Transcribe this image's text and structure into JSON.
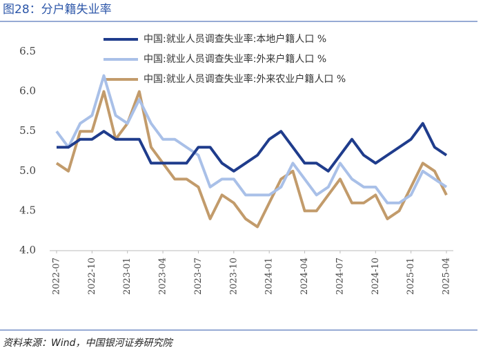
{
  "header": {
    "title": "图28：分户籍失业率"
  },
  "chart_data": {
    "type": "line",
    "categories": [
      "2022-07",
      null,
      null,
      "2022-10",
      null,
      null,
      "2023-01",
      null,
      null,
      "2023-04",
      null,
      null,
      "2023-07",
      null,
      null,
      "2023-10",
      null,
      null,
      "2024-01",
      null,
      null,
      "2024-04",
      null,
      null,
      "2024-07",
      null,
      null,
      "2024-10",
      null,
      null,
      "2025-01",
      null,
      null,
      "2025-04"
    ],
    "series": [
      {
        "name": "中国:就业人员调查失业率:本地户籍人口 %",
        "color": "#1f3c8c",
        "values": [
          5.3,
          5.3,
          5.4,
          5.4,
          5.5,
          5.4,
          5.4,
          5.4,
          5.1,
          5.1,
          5.1,
          5.1,
          5.3,
          5.3,
          5.1,
          5.0,
          5.1,
          5.2,
          5.4,
          5.5,
          5.3,
          5.1,
          5.1,
          5.0,
          5.2,
          5.4,
          5.2,
          5.1,
          5.2,
          5.3,
          5.4,
          5.6,
          5.3,
          5.2
        ]
      },
      {
        "name": "中国:就业人员调查失业率:外来户籍人口 %",
        "color": "#a9c0e8",
        "values": [
          5.5,
          5.3,
          5.6,
          5.7,
          6.2,
          5.7,
          5.6,
          5.9,
          5.6,
          5.4,
          5.4,
          5.3,
          5.2,
          4.8,
          4.9,
          4.9,
          4.7,
          4.7,
          4.7,
          4.8,
          5.1,
          4.9,
          4.7,
          4.8,
          5.1,
          4.9,
          4.8,
          4.8,
          4.6,
          4.6,
          4.7,
          5.0,
          4.9,
          4.8
        ]
      },
      {
        "name": "中国:就业人员调查失业率:外来农业户籍人口 %",
        "color": "#c29b6b",
        "values": [
          5.1,
          5.0,
          5.5,
          5.5,
          6.0,
          5.4,
          5.6,
          6.0,
          5.3,
          5.1,
          4.9,
          4.9,
          4.8,
          4.4,
          4.7,
          4.6,
          4.4,
          4.3,
          4.6,
          4.9,
          5.0,
          4.5,
          4.5,
          4.7,
          4.9,
          4.6,
          4.6,
          4.7,
          4.4,
          4.5,
          4.8,
          5.1,
          5.0,
          4.7
        ]
      }
    ],
    "ylim": [
      4,
      6.5
    ],
    "yticks": [
      {
        "value": 4,
        "label": "4.0"
      },
      4.5,
      {
        "value": 5,
        "label": "5.0"
      },
      5.5,
      {
        "value": 6,
        "label": "6.0"
      },
      6.5
    ],
    "grid": false,
    "legend": "top"
  },
  "footer": {
    "source": "资料来源：Wind，中国银河证券研究院"
  }
}
